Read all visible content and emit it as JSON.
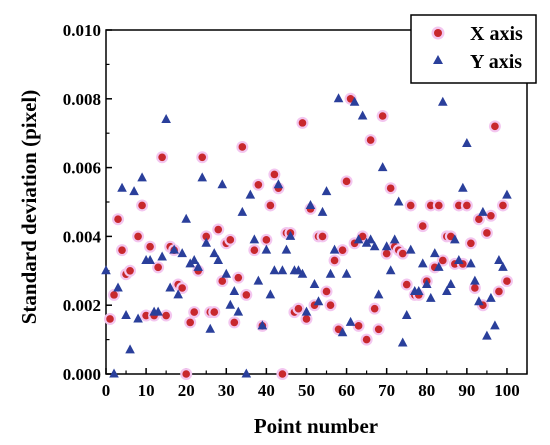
{
  "colors": {
    "series_x_fill": "#c8282d",
    "series_x_halo": "#f3c6ef",
    "series_y_fill": "#2a3f9b",
    "axis": "#000000"
  },
  "chart_data": {
    "type": "scatter",
    "title": "",
    "xlabel": "Point number",
    "ylabel": "Standard deviation (pixel)",
    "xlim": [
      0,
      105
    ],
    "ylim": [
      0,
      0.01
    ],
    "xticks": [
      "0",
      "10",
      "20",
      "30",
      "40",
      "50",
      "60",
      "70",
      "80",
      "90",
      "100"
    ],
    "yticks": [
      "0.000",
      "0.002",
      "0.004",
      "0.006",
      "0.008",
      "0.010"
    ],
    "grid": false,
    "legend_position": "top-right",
    "series": [
      {
        "name": "X axis",
        "marker": "circle",
        "points": [
          [
            1,
            0.0016
          ],
          [
            2,
            0.0023
          ],
          [
            3,
            0.0045
          ],
          [
            4,
            0.0036
          ],
          [
            5,
            0.0029
          ],
          [
            6,
            0.003
          ],
          [
            8,
            0.004
          ],
          [
            9,
            0.0049
          ],
          [
            10,
            0.0017
          ],
          [
            11,
            0.0037
          ],
          [
            12,
            0.0017
          ],
          [
            13,
            0.0031
          ],
          [
            14,
            0.0063
          ],
          [
            15,
            0.0017
          ],
          [
            16,
            0.0037
          ],
          [
            17,
            0.0036
          ],
          [
            18,
            0.0026
          ],
          [
            19,
            0.0025
          ],
          [
            20,
            0.0
          ],
          [
            21,
            0.0015
          ],
          [
            22,
            0.0018
          ],
          [
            23,
            0.003
          ],
          [
            24,
            0.0063
          ],
          [
            25,
            0.004
          ],
          [
            26,
            0.0018
          ],
          [
            27,
            0.0018
          ],
          [
            28,
            0.0042
          ],
          [
            29,
            0.0027
          ],
          [
            30,
            0.0038
          ],
          [
            31,
            0.0039
          ],
          [
            32,
            0.0015
          ],
          [
            33,
            0.0028
          ],
          [
            34,
            0.0066
          ],
          [
            35,
            0.0023
          ],
          [
            37,
            0.0036
          ],
          [
            38,
            0.0055
          ],
          [
            39,
            0.0014
          ],
          [
            40,
            0.0039
          ],
          [
            41,
            0.0049
          ],
          [
            42,
            0.0058
          ],
          [
            43,
            0.0054
          ],
          [
            44,
            0.0
          ],
          [
            45,
            0.0041
          ],
          [
            46,
            0.0041
          ],
          [
            47,
            0.0018
          ],
          [
            48,
            0.0019
          ],
          [
            49,
            0.0073
          ],
          [
            50,
            0.0016
          ],
          [
            51,
            0.0048
          ],
          [
            52,
            0.002
          ],
          [
            53,
            0.004
          ],
          [
            54,
            0.004
          ],
          [
            55,
            0.0024
          ],
          [
            56,
            0.002
          ],
          [
            57,
            0.0033
          ],
          [
            58,
            0.0013
          ],
          [
            59,
            0.0036
          ],
          [
            60,
            0.0056
          ],
          [
            61,
            0.008
          ],
          [
            62,
            0.0038
          ],
          [
            63,
            0.0014
          ],
          [
            64,
            0.004
          ],
          [
            65,
            0.001
          ],
          [
            66,
            0.0068
          ],
          [
            67,
            0.0019
          ],
          [
            68,
            0.0013
          ],
          [
            69,
            0.0075
          ],
          [
            70,
            0.0035
          ],
          [
            71,
            0.0054
          ],
          [
            72,
            0.0037
          ],
          [
            73,
            0.0036
          ],
          [
            74,
            0.0035
          ],
          [
            75,
            0.0026
          ],
          [
            76,
            0.0049
          ],
          [
            77,
            0.0023
          ],
          [
            78,
            0.0023
          ],
          [
            79,
            0.0043
          ],
          [
            80,
            0.0027
          ],
          [
            81,
            0.0049
          ],
          [
            82,
            0.0031
          ],
          [
            83,
            0.0049
          ],
          [
            84,
            0.0033
          ],
          [
            85,
            0.004
          ],
          [
            86,
            0.004
          ],
          [
            87,
            0.0032
          ],
          [
            88,
            0.0049
          ],
          [
            89,
            0.0032
          ],
          [
            90,
            0.0049
          ],
          [
            91,
            0.0038
          ],
          [
            92,
            0.0025
          ],
          [
            93,
            0.0045
          ],
          [
            94,
            0.002
          ],
          [
            95,
            0.0041
          ],
          [
            96,
            0.0046
          ],
          [
            97,
            0.0072
          ],
          [
            98,
            0.0024
          ],
          [
            99,
            0.0049
          ],
          [
            100,
            0.0027
          ]
        ]
      },
      {
        "name": "Y axis",
        "marker": "triangle",
        "points": [
          [
            0,
            0.003
          ],
          [
            2,
            0.0
          ],
          [
            3,
            0.0025
          ],
          [
            4,
            0.0054
          ],
          [
            5,
            0.0017
          ],
          [
            6,
            0.0007
          ],
          [
            7,
            0.0053
          ],
          [
            8,
            0.0016
          ],
          [
            9,
            0.0057
          ],
          [
            10,
            0.0033
          ],
          [
            11,
            0.0033
          ],
          [
            12,
            0.0018
          ],
          [
            13,
            0.0018
          ],
          [
            14,
            0.0034
          ],
          [
            15,
            0.0074
          ],
          [
            16,
            0.0025
          ],
          [
            17,
            0.0036
          ],
          [
            18,
            0.0023
          ],
          [
            19,
            0.0035
          ],
          [
            20,
            0.0045
          ],
          [
            21,
            0.0032
          ],
          [
            22,
            0.0033
          ],
          [
            23,
            0.0031
          ],
          [
            24,
            0.0057
          ],
          [
            25,
            0.0038
          ],
          [
            26,
            0.0013
          ],
          [
            27,
            0.0035
          ],
          [
            28,
            0.0033
          ],
          [
            29,
            0.0055
          ],
          [
            30,
            0.0029
          ],
          [
            31,
            0.002
          ],
          [
            32,
            0.0024
          ],
          [
            33,
            0.0018
          ],
          [
            34,
            0.0047
          ],
          [
            35,
            0.0
          ],
          [
            36,
            0.0052
          ],
          [
            37,
            0.0039
          ],
          [
            38,
            0.0027
          ],
          [
            39,
            0.0014
          ],
          [
            40,
            0.0036
          ],
          [
            41,
            0.0023
          ],
          [
            42,
            0.003
          ],
          [
            43,
            0.0055
          ],
          [
            44,
            0.003
          ],
          [
            45,
            0.0036
          ],
          [
            46,
            0.004
          ],
          [
            47,
            0.003
          ],
          [
            48,
            0.003
          ],
          [
            49,
            0.0029
          ],
          [
            50,
            0.0018
          ],
          [
            51,
            0.0049
          ],
          [
            52,
            0.0026
          ],
          [
            53,
            0.0021
          ],
          [
            54,
            0.0047
          ],
          [
            55,
            0.0053
          ],
          [
            56,
            0.0029
          ],
          [
            57,
            0.0036
          ],
          [
            58,
            0.008
          ],
          [
            59,
            0.0012
          ],
          [
            60,
            0.0029
          ],
          [
            61,
            0.0015
          ],
          [
            62,
            0.0079
          ],
          [
            63,
            0.0039
          ],
          [
            64,
            0.0075
          ],
          [
            65,
            0.0038
          ],
          [
            66,
            0.0039
          ],
          [
            67,
            0.0037
          ],
          [
            68,
            0.0023
          ],
          [
            69,
            0.006
          ],
          [
            70,
            0.0037
          ],
          [
            71,
            0.003
          ],
          [
            72,
            0.0039
          ],
          [
            73,
            0.005
          ],
          [
            74,
            0.0009
          ],
          [
            75,
            0.0017
          ],
          [
            76,
            0.0036
          ],
          [
            77,
            0.0024
          ],
          [
            78,
            0.0024
          ],
          [
            79,
            0.0032
          ],
          [
            80,
            0.0026
          ],
          [
            81,
            0.0022
          ],
          [
            82,
            0.0035
          ],
          [
            83,
            0.0031
          ],
          [
            84,
            0.0079
          ],
          [
            85,
            0.0024
          ],
          [
            86,
            0.0026
          ],
          [
            87,
            0.0039
          ],
          [
            88,
            0.0033
          ],
          [
            89,
            0.0054
          ],
          [
            90,
            0.0067
          ],
          [
            91,
            0.0032
          ],
          [
            92,
            0.0027
          ],
          [
            93,
            0.0021
          ],
          [
            94,
            0.0047
          ],
          [
            95,
            0.0011
          ],
          [
            96,
            0.0022
          ],
          [
            97,
            0.0014
          ],
          [
            98,
            0.0033
          ],
          [
            99,
            0.0031
          ],
          [
            100,
            0.0052
          ]
        ]
      }
    ]
  }
}
